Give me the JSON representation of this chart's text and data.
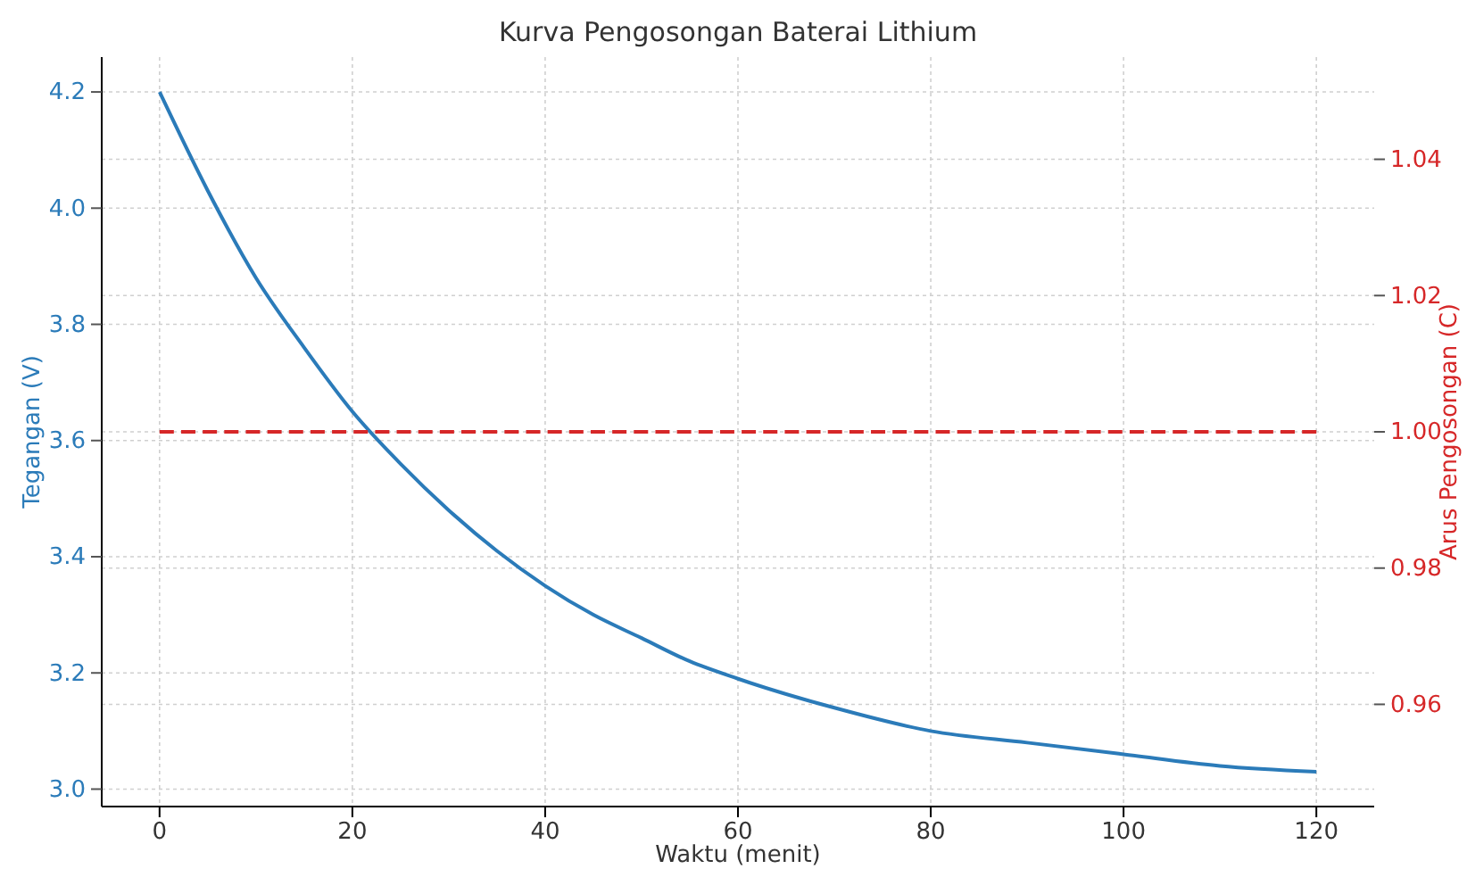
{
  "chart_data": {
    "type": "line",
    "title": "Kurva Pengosongan Baterai Lithium",
    "xlabel": "Waktu (menit)",
    "ylabel": "Tegangan (V)",
    "y2label": "Arus Pengosongan (C)",
    "xlim": [
      -6,
      126
    ],
    "xticks": [
      0,
      20,
      40,
      60,
      80,
      100,
      120
    ],
    "ylim": [
      2.97,
      4.26
    ],
    "yticks": [
      {
        "value": 3.0,
        "label": "3.0"
      },
      {
        "value": 3.2,
        "label": "3.2"
      },
      {
        "value": 3.4,
        "label": "3.4"
      },
      {
        "value": 3.6,
        "label": "3.6"
      },
      {
        "value": 3.8,
        "label": "3.8"
      },
      {
        "value": 4.0,
        "label": "4.0"
      },
      {
        "value": 4.2,
        "label": "4.2"
      }
    ],
    "y2lim": [
      0.945,
      1.055
    ],
    "y2ticks": [
      {
        "value": 0.96,
        "label": "0.96"
      },
      {
        "value": 0.98,
        "label": "0.98"
      },
      {
        "value": 1.0,
        "label": "1.00"
      },
      {
        "value": 1.02,
        "label": "1.02"
      },
      {
        "value": 1.04,
        "label": "1.04"
      }
    ],
    "grid": true,
    "series": [
      {
        "color": "#2b7bb9",
        "line_style": "solid",
        "x": [
          0,
          5,
          10,
          15,
          20,
          25,
          30,
          35,
          40,
          45,
          50,
          55,
          60,
          70,
          80,
          90,
          100,
          110,
          120
        ],
        "values": [
          4.2,
          4.03,
          3.88,
          3.76,
          3.65,
          3.56,
          3.48,
          3.41,
          3.35,
          3.3,
          3.26,
          3.22,
          3.19,
          3.14,
          3.1,
          3.08,
          3.06,
          3.04,
          3.03
        ]
      },
      {
        "color": "#d62728",
        "line_style": "dashed",
        "axis": "y2",
        "x": [
          0,
          120
        ],
        "values": [
          1.0,
          1.0
        ]
      }
    ]
  }
}
